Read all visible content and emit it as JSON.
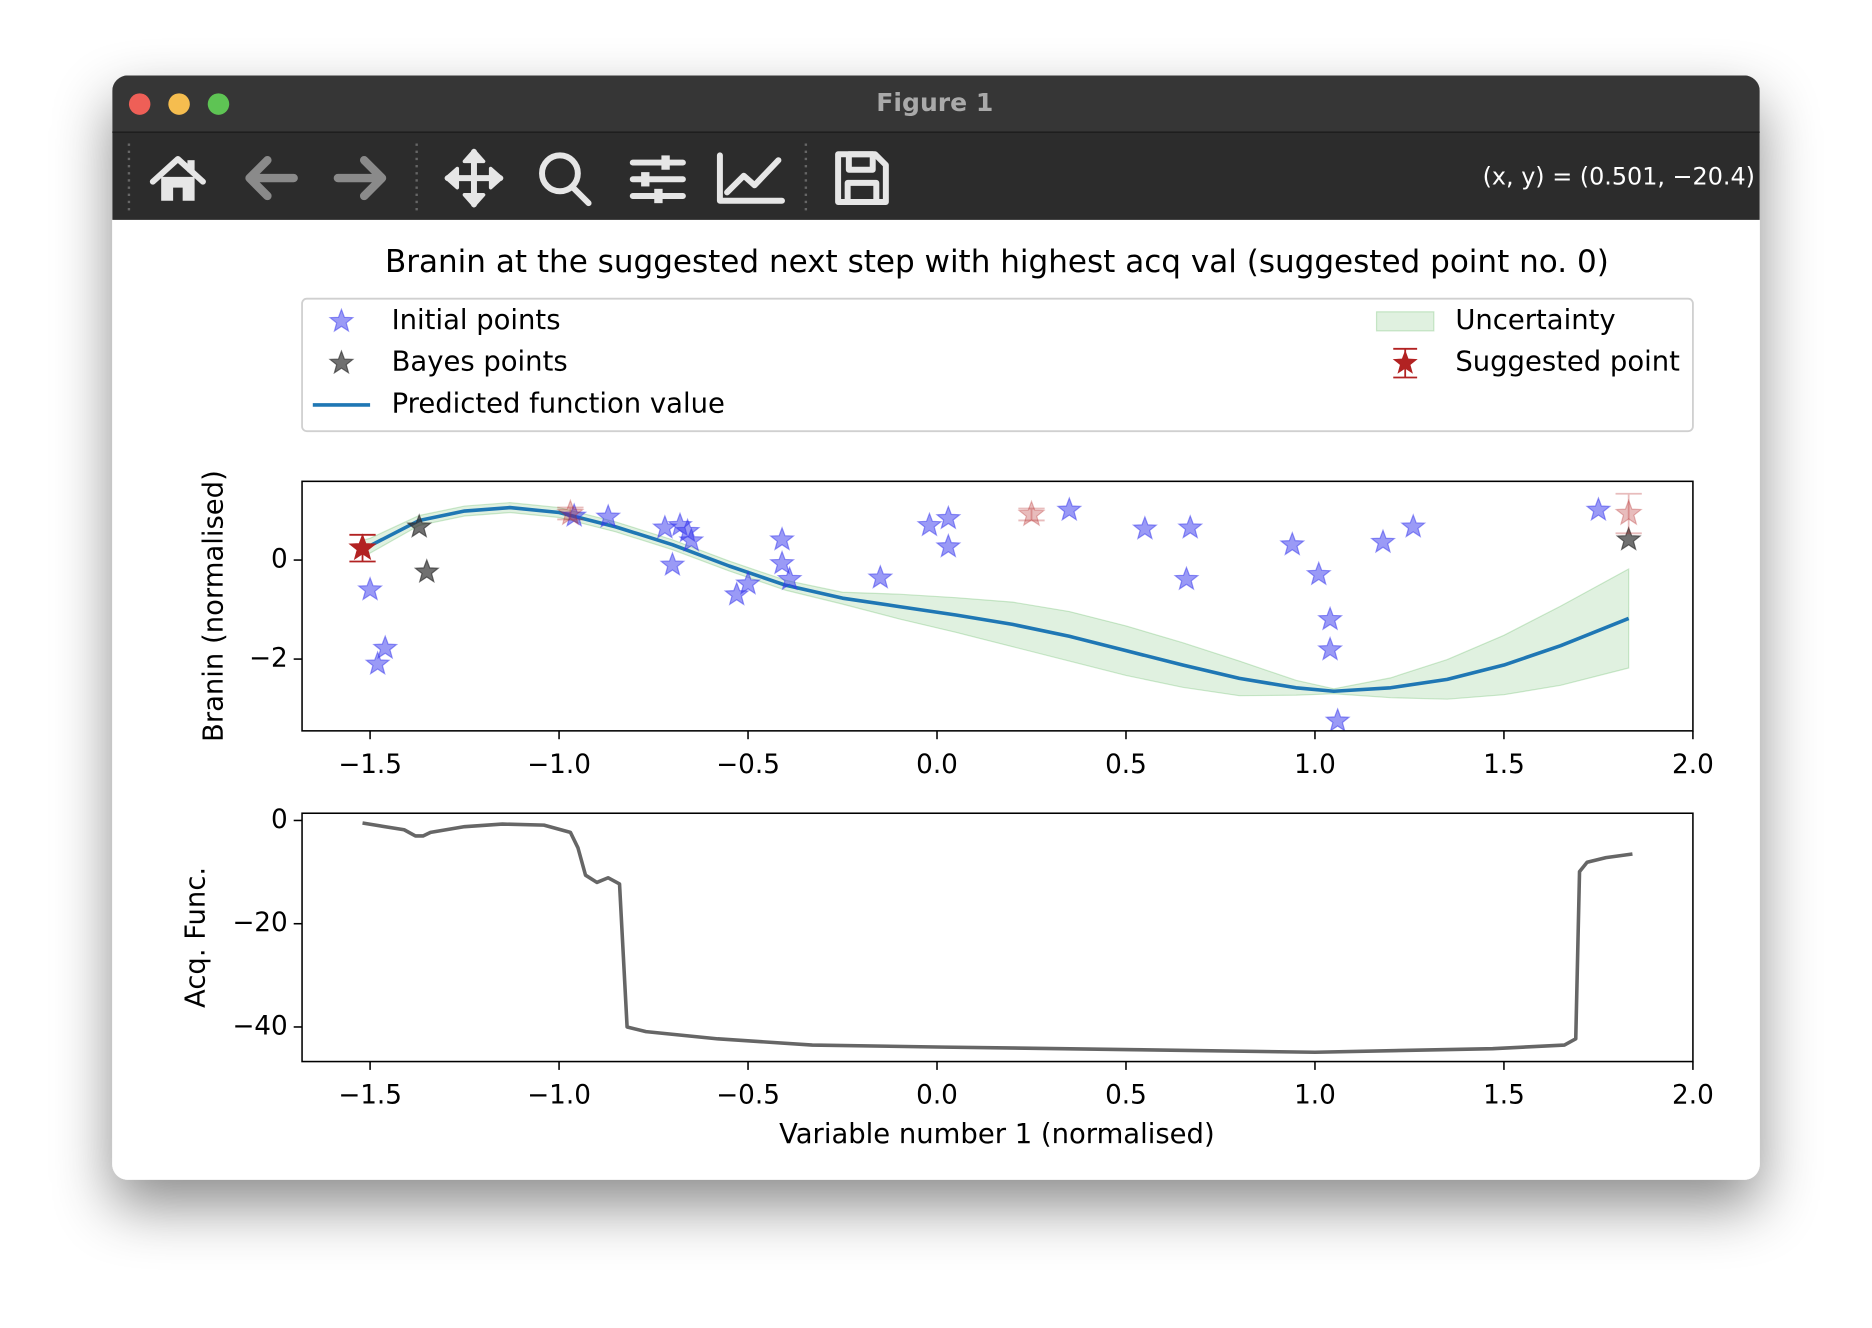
{
  "window": {
    "title": "Figure 1",
    "coordinates": "(x, y) = (0.501, −20.4)"
  },
  "chart_data": [
    {
      "type": "scatter-line",
      "title": "Branin at the suggested next step with highest acq val (suggested point no. 0)",
      "ylabel": "Branin (normalised)",
      "xlim": [
        -1.68,
        2.0
      ],
      "ylim": [
        -3.45,
        1.59
      ],
      "xticks": [
        {
          "value": -1.5,
          "label": "−1.5"
        },
        {
          "value": -1.0,
          "label": "−1.0"
        },
        {
          "value": -0.5,
          "label": "−0.5"
        },
        {
          "value": 0.0,
          "label": "0.0"
        },
        {
          "value": 0.5,
          "label": "0.5"
        },
        {
          "value": 1.0,
          "label": "1.0"
        },
        {
          "value": 1.5,
          "label": "1.5"
        },
        {
          "value": 2.0,
          "label": "2.0"
        }
      ],
      "yticks": [
        0,
        {
          "value": -2,
          "label": "−2"
        }
      ],
      "series": [
        {
          "name": "Initial points",
          "kind": "scatter",
          "color": "#3535ee",
          "alpha": 0.5,
          "x": [
            -1.5,
            -1.48,
            -1.46,
            -0.96,
            -0.87,
            -0.72,
            -0.7,
            -0.68,
            -0.66,
            -0.65,
            -0.53,
            -0.5,
            -0.41,
            -0.41,
            -0.39,
            -0.15,
            -0.02,
            0.03,
            0.03,
            0.35,
            0.55,
            0.67,
            0.66,
            0.94,
            1.01,
            1.04,
            1.04,
            1.06,
            1.18,
            1.26,
            1.75
          ],
          "values": [
            -0.6,
            -2.1,
            -1.78,
            0.89,
            0.87,
            0.65,
            -0.1,
            0.7,
            0.58,
            0.39,
            -0.7,
            -0.48,
            0.41,
            -0.07,
            -0.39,
            -0.36,
            0.7,
            0.84,
            0.27,
            1.01,
            0.63,
            0.65,
            -0.39,
            0.31,
            -0.29,
            -1.2,
            -1.81,
            -3.25,
            0.36,
            0.67,
            1.01
          ]
        },
        {
          "name": "Bayes points",
          "kind": "scatter",
          "color": "#333333",
          "alpha": 0.7,
          "x": [
            -1.37,
            -1.35,
            1.83
          ],
          "values": [
            0.67,
            -0.24,
            0.41
          ]
        },
        {
          "name": "Predicted function value",
          "kind": "line",
          "color": "#1f77b4",
          "x": [
            -1.52,
            -1.5,
            -1.37,
            -1.25,
            -1.13,
            -1.0,
            -0.85,
            -0.7,
            -0.55,
            -0.4,
            -0.25,
            -0.1,
            0.05,
            0.2,
            0.35,
            0.5,
            0.65,
            0.8,
            0.95,
            1.05,
            1.2,
            1.35,
            1.5,
            1.65,
            1.83
          ],
          "values": [
            0.25,
            0.29,
            0.8,
            0.99,
            1.06,
            0.96,
            0.67,
            0.31,
            -0.12,
            -0.51,
            -0.77,
            -0.94,
            -1.11,
            -1.3,
            -1.54,
            -1.83,
            -2.12,
            -2.39,
            -2.58,
            -2.65,
            -2.58,
            -2.41,
            -2.12,
            -1.73,
            -1.18
          ]
        },
        {
          "name": "Uncertainty",
          "kind": "band",
          "color": "#2ca02c",
          "alpha": 0.15,
          "x": [
            -1.52,
            -1.5,
            -1.37,
            -1.25,
            -1.13,
            -1.0,
            -0.85,
            -0.7,
            -0.55,
            -0.4,
            -0.25,
            -0.1,
            0.05,
            0.2,
            0.35,
            0.5,
            0.65,
            0.8,
            0.95,
            1.05,
            1.2,
            1.35,
            1.5,
            1.65,
            1.83
          ],
          "lower": [
            0.1,
            0.14,
            0.7,
            0.89,
            0.96,
            0.86,
            0.57,
            0.21,
            -0.22,
            -0.61,
            -0.89,
            -1.19,
            -1.46,
            -1.75,
            -2.04,
            -2.33,
            -2.57,
            -2.74,
            -2.73,
            -2.7,
            -2.78,
            -2.81,
            -2.72,
            -2.53,
            -2.18
          ],
          "upper": [
            0.4,
            0.44,
            0.9,
            1.09,
            1.16,
            1.06,
            0.77,
            0.41,
            -0.02,
            -0.41,
            -0.65,
            -0.69,
            -0.76,
            -0.85,
            -1.04,
            -1.33,
            -1.67,
            -2.04,
            -2.43,
            -2.6,
            -2.38,
            -2.01,
            -1.52,
            -0.93,
            -0.18
          ]
        },
        {
          "name": "Suggested point",
          "kind": "errorbar",
          "color": "#b22222",
          "x": [
            -1.52,
            -0.97,
            0.25,
            1.83
          ],
          "values": [
            0.24,
            0.94,
            0.92,
            0.94
          ],
          "errors": [
            0.27,
            0.12,
            0.12,
            0.4
          ],
          "opacity": [
            1,
            0.3,
            0.3,
            0.3
          ]
        }
      ]
    },
    {
      "type": "line",
      "xlabel": "Variable number 1 (normalised)",
      "ylabel": "Acq. Func.",
      "xlim": [
        -1.68,
        2.0
      ],
      "ylim": [
        -46.7,
        1.4
      ],
      "xticks": [
        {
          "value": -1.5,
          "label": "−1.5"
        },
        {
          "value": -1.0,
          "label": "−1.0"
        },
        {
          "value": -0.5,
          "label": "−0.5"
        },
        {
          "value": 0.0,
          "label": "0.0"
        },
        {
          "value": 0.5,
          "label": "0.5"
        },
        {
          "value": 1.0,
          "label": "1.0"
        },
        {
          "value": 1.5,
          "label": "1.5"
        },
        {
          "value": 2.0,
          "label": "2.0"
        }
      ],
      "yticks": [
        0,
        {
          "value": -20,
          "label": "−20"
        },
        {
          "value": -40,
          "label": "−40"
        }
      ],
      "series": [
        {
          "kind": "line",
          "color": "#666666",
          "x": [
            -1.52,
            -1.41,
            -1.38,
            -1.36,
            -1.34,
            -1.25,
            -1.15,
            -1.04,
            -0.97,
            -0.95,
            -0.93,
            -0.9,
            -0.87,
            -0.84,
            -0.82,
            -0.77,
            -0.58,
            -0.33,
            0.02,
            0.52,
            1.0,
            1.47,
            1.66,
            1.69,
            1.7,
            1.72,
            1.77,
            1.84
          ],
          "values": [
            -0.5,
            -1.8,
            -3.0,
            -3.0,
            -2.3,
            -1.2,
            -0.7,
            -0.9,
            -2.3,
            -5.3,
            -10.6,
            -12.0,
            -11.1,
            -12.3,
            -40.0,
            -40.9,
            -42.3,
            -43.5,
            -43.9,
            -44.4,
            -44.9,
            -44.2,
            -43.5,
            -42.3,
            -9.9,
            -8.1,
            -7.2,
            -6.5
          ]
        }
      ]
    }
  ]
}
